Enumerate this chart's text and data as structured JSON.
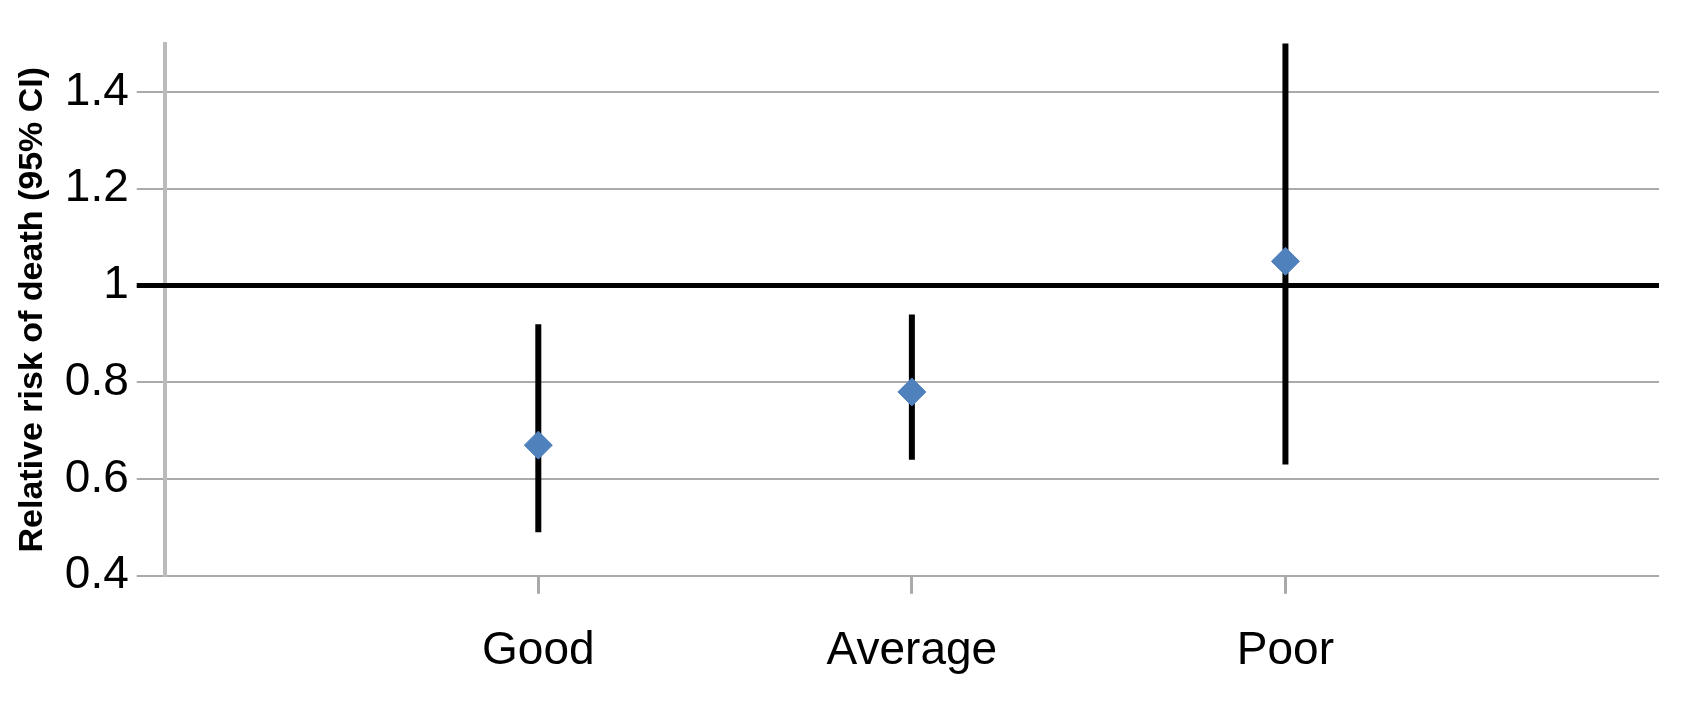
{
  "chart_data": {
    "type": "scatter",
    "ylabel": "Relative risk of death (95% CI)",
    "categories": [
      "Good",
      "Average",
      "Poor"
    ],
    "series": [
      {
        "color": "#4f81bd",
        "values": [
          0.67,
          0.78,
          1.05
        ],
        "errors": [
          [
            0.49,
            0.92
          ],
          [
            0.64,
            0.94
          ],
          [
            0.63,
            1.5
          ]
        ]
      }
    ],
    "ylim": [
      0.4,
      1.5
    ],
    "yticks": [
      0.4,
      0.6,
      0.8,
      1,
      1.2,
      1.4
    ],
    "grid": "y",
    "marker": "diamond",
    "legend": false,
    "ref_lines": [
      {
        "axis": "y",
        "value": 1,
        "color": "#000000"
      }
    ]
  }
}
